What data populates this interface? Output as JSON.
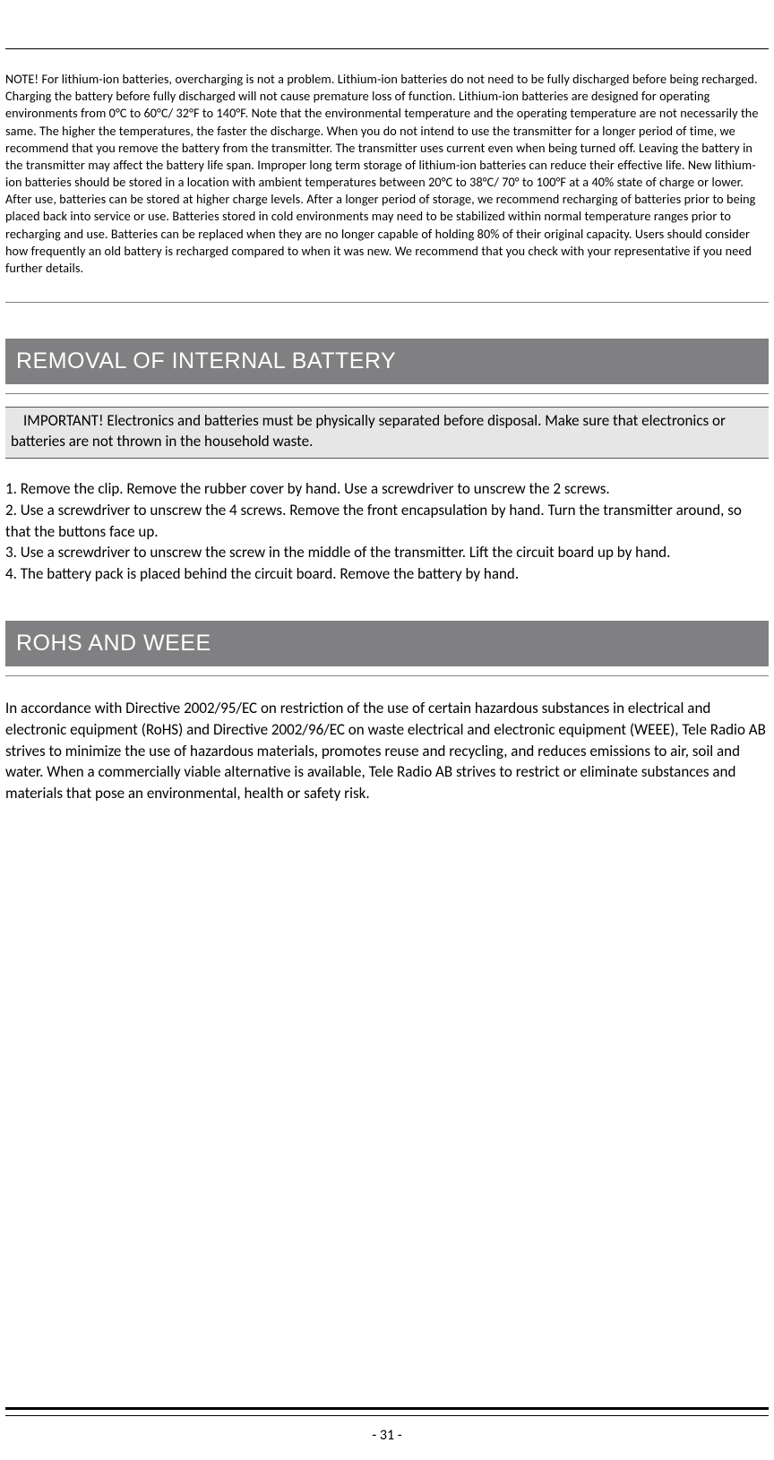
{
  "note": "NOTE! For lithium-ion batteries, overcharging is not a problem. Lithium-ion batteries do not need to be fully discharged before being recharged. Charging the battery before fully discharged will not cause premature loss of function. Lithium-ion batteries are designed for operating environments from 0°C to 60°C/ 32°F to 140°F. Note that the environmental temperature and the operating temperature are not necessarily the same. The higher the temperatures, the faster the discharge. When you do not intend to use the transmitter for a longer period of time, we recommend that you remove the battery from the transmitter. The transmitter uses current even when being turned off. Leaving the battery in the transmitter may affect the battery life span. Improper long term storage of lithium-ion batteries can reduce their effective life. New lithium-ion batteries should be stored in a location with ambient temperatures between 20°C to 38°C/ 70° to 100°F at a 40% state of charge or lower. After use, batteries can be stored at higher charge levels. After a longer period of storage, we recommend recharging of batteries prior to being placed back into service or use. Batteries stored in cold environments may need to be stabilized within normal temperature ranges prior to recharging and use. Batteries can be replaced when they are no longer capable of holding 80% of their original capacity. Users should consider how frequently an old battery is recharged compared to when it was new. We recommend that you check with your representative if you need further details.",
  "section1": {
    "heading": "REMOVAL OF INTERNAL BATTERY",
    "important": "IMPORTANT! Electronics and batteries must be physically separated before disposal. Make sure that electronics or batteries are not thrown in the household waste.",
    "steps_text": "1. Remove the clip. Remove the rubber cover by hand. Use a screwdriver to unscrew the 2 screws.\n2. Use a screwdriver to unscrew the 4 screws. Remove the front encapsulation by hand. Turn the transmitter around, so that the buttons face up.\n3. Use a screwdriver to unscrew the screw in the middle of the transmitter. Lift the circuit board up by hand.\n4. The battery pack is placed behind the circuit board. Remove the battery by hand."
  },
  "section2": {
    "heading": "ROHS AND WEEE",
    "body": "In accordance with Directive 2002/95/EC on restriction of the use of certain hazardous substances in electrical and electronic equipment (RoHS) and Directive 2002/96/EC on waste electrical and electronic equipment (WEEE), Tele Radio AB strives to minimize the use of hazardous materials, promotes reuse and recycling, and reduces emissions to air, soil and water. When a commercially viable alternative is available, Tele Radio AB strives to restrict or eliminate substances and materials that pose an environmental, health or safety risk."
  },
  "page_number": "- 31 -"
}
